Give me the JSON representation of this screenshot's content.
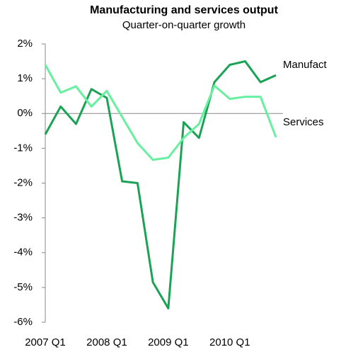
{
  "chart_data": {
    "type": "line",
    "title": "Manufacturing and services output",
    "subtitle": "Quarter-on-quarter growth",
    "categories": [
      "2007 Q1",
      null,
      null,
      null,
      "2008 Q1",
      null,
      null,
      null,
      "2009 Q1",
      null,
      null,
      null,
      "2010 Q1",
      null,
      null,
      null
    ],
    "series": [
      {
        "name": "Manufact",
        "color": "#1aa355",
        "values": [
          -0.6,
          0.2,
          -0.3,
          0.7,
          0.45,
          -1.95,
          -2.0,
          -4.85,
          -5.6,
          -0.25,
          -0.7,
          0.9,
          1.4,
          1.5,
          0.9,
          1.1
        ]
      },
      {
        "name": "Services",
        "color": "#66f0a0",
        "values": [
          1.4,
          0.6,
          0.78,
          0.2,
          0.65,
          -0.1,
          -0.85,
          -1.33,
          -1.27,
          -0.7,
          -0.3,
          0.8,
          0.42,
          0.48,
          0.48,
          -0.68
        ]
      }
    ],
    "ylim": [
      -6,
      2
    ],
    "yticks": [
      {
        "value": -6,
        "label": "-6%"
      },
      {
        "value": -5,
        "label": "-5%"
      },
      {
        "value": -4,
        "label": "-4%"
      },
      {
        "value": -3,
        "label": "-3%"
      },
      {
        "value": -2,
        "label": "-2%"
      },
      {
        "value": -1,
        "label": "-1%"
      },
      {
        "value": 0,
        "label": "0%"
      },
      {
        "value": 1,
        "label": "1%"
      },
      {
        "value": 2,
        "label": "2%"
      }
    ]
  }
}
